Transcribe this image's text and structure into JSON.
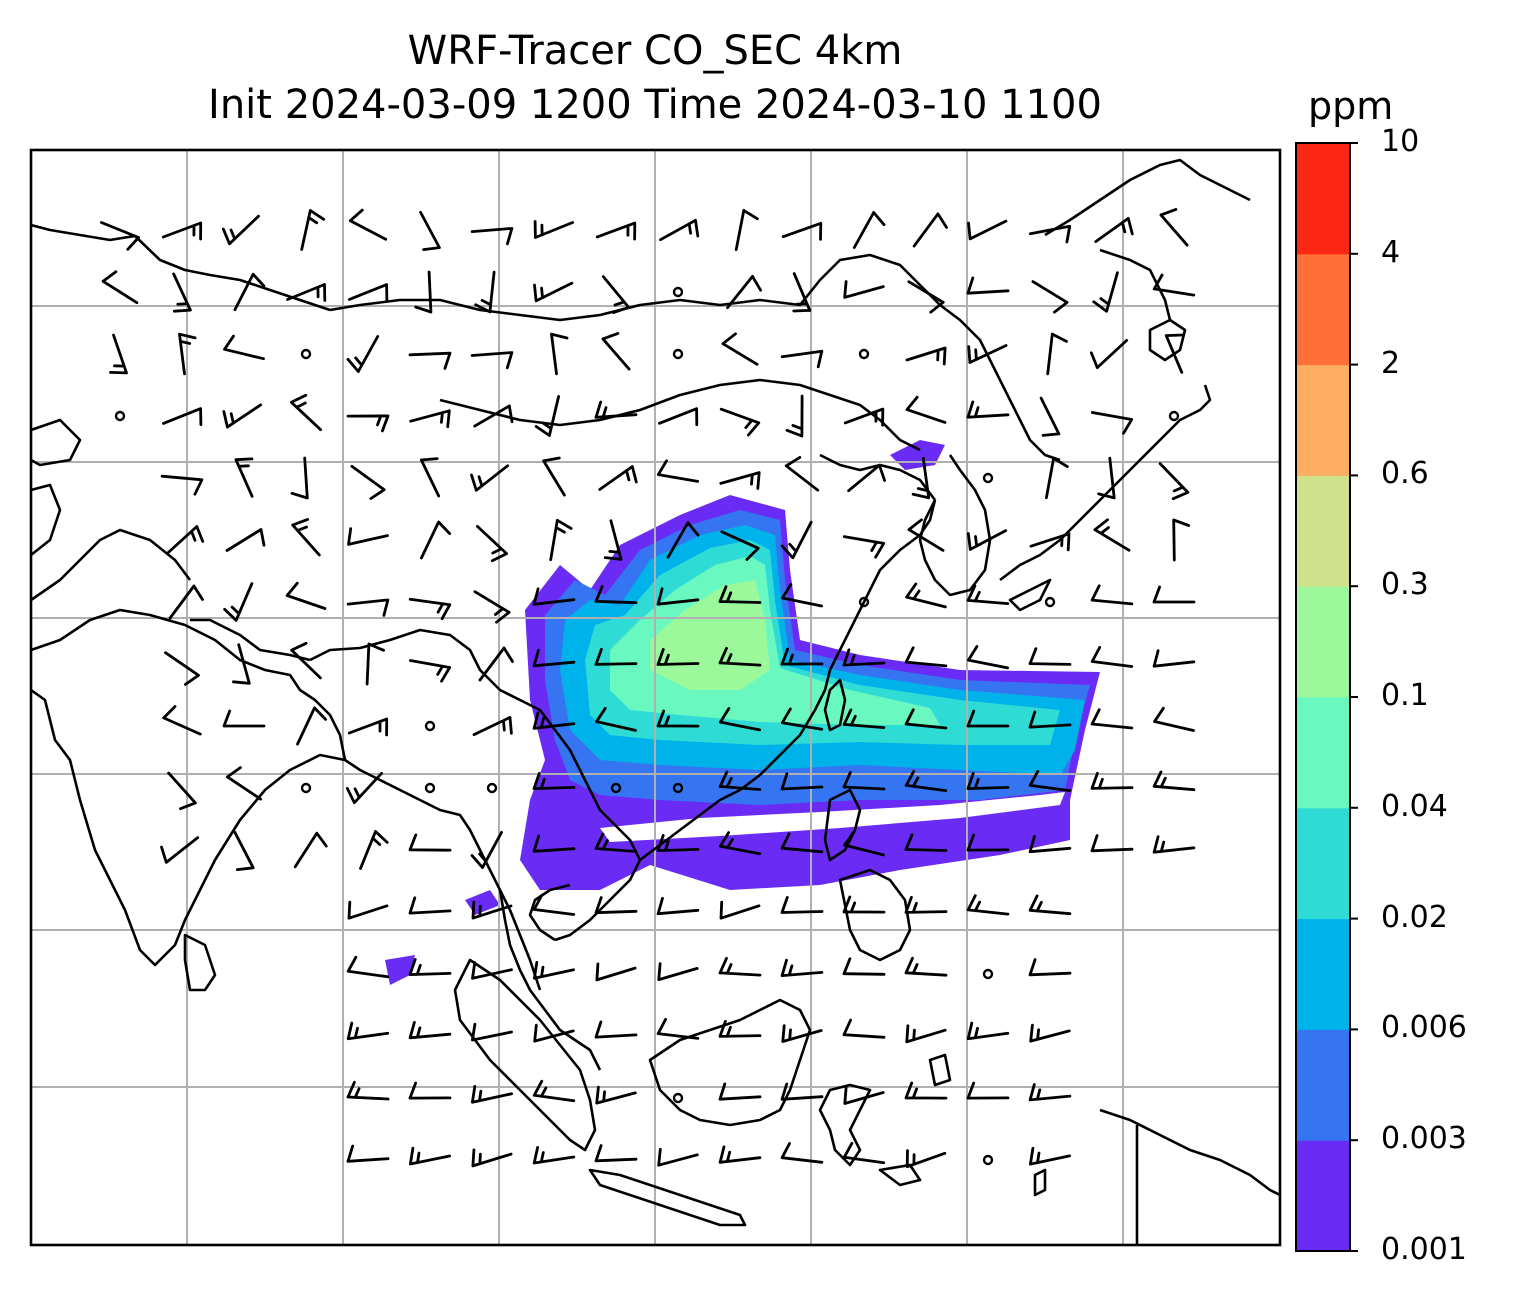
{
  "title": {
    "line1": "WRF-Tracer CO_SEC 4km",
    "line2": "Init 2024-03-09 1200 Time 2024-03-10 1100"
  },
  "colorbar": {
    "unit": "ppm",
    "ticks": [
      "0.001",
      "0.003",
      "0.006",
      "0.02",
      "0.04",
      "0.1",
      "0.3",
      "0.6",
      "2",
      "4",
      "10"
    ],
    "colors": [
      "#6a2cf5",
      "#3575f2",
      "#00b2ea",
      "#2fdbd5",
      "#69f9c0",
      "#9cf99b",
      "#cfe18a",
      "#feae62",
      "#ff7038",
      "#fb2614"
    ]
  },
  "map": {
    "gridlines": true,
    "grid_color": "#b0b0b0",
    "coastline_color": "#000000",
    "barb_color": "#000000"
  }
}
